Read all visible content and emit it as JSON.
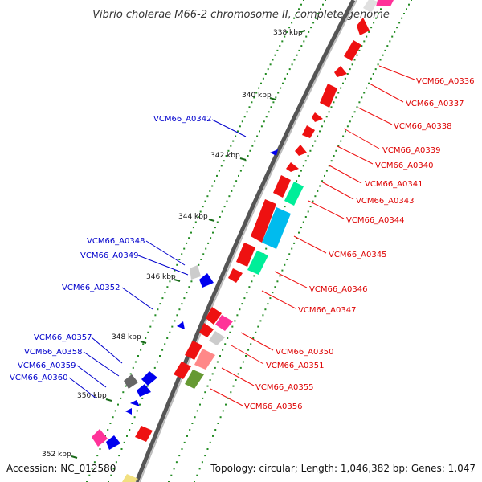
{
  "title": "Vibrio cholerae M66-2 chromosome II, complete genome",
  "accession": "Accession: NC_012580",
  "summary": "Topology: circular; Length: 1,046,382 bp; Genes: 1,047",
  "ticks": [
    "338 kbp",
    "340 kbp",
    "342 kbp",
    "344 kbp",
    "346 kbp",
    "348 kbp",
    "350 kbp",
    "352 kbp"
  ],
  "colors": {
    "forward_label": "#dd0000",
    "reverse_label": "#0000cc",
    "backbone": "#8c8c8c",
    "tick_dots": "#228b22"
  },
  "genes_right": [
    {
      "label": "VCM66_A0336"
    },
    {
      "label": "VCM66_A0337"
    },
    {
      "label": "VCM66_A0338"
    },
    {
      "label": "VCM66_A0339"
    },
    {
      "label": "VCM66_A0340"
    },
    {
      "label": "VCM66_A0341"
    },
    {
      "label": "VCM66_A0343"
    },
    {
      "label": "VCM66_A0344"
    },
    {
      "label": "VCM66_A0345"
    },
    {
      "label": "VCM66_A0346"
    },
    {
      "label": "VCM66_A0347"
    },
    {
      "label": "VCM66_A0350"
    },
    {
      "label": "VCM66_A0351"
    },
    {
      "label": "VCM66_A0355"
    },
    {
      "label": "VCM66_A0356"
    }
  ],
  "genes_left": [
    {
      "label": "VCM66_A0342"
    },
    {
      "label": "VCM66_A0348"
    },
    {
      "label": "VCM66_A0349"
    },
    {
      "label": "VCM66_A0352"
    },
    {
      "label": "VCM66_A0357"
    },
    {
      "label": "VCM66_A0358"
    },
    {
      "label": "VCM66_A0359"
    },
    {
      "label": "VCM66_A0360"
    }
  ]
}
